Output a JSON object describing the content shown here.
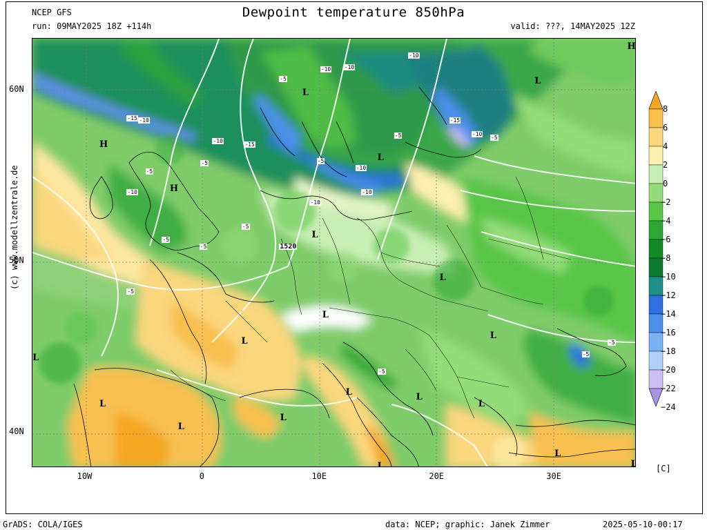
{
  "header": {
    "model": "NCEP GFS",
    "run": "run: 09MAY2025 18Z +114h",
    "title": "Dewpoint temperature 850hPa",
    "valid": "valid: ???, 14MAY2025 12Z"
  },
  "axes": {
    "lon_labels": [
      {
        "text": "10W",
        "lon": -10
      },
      {
        "text": "0",
        "lon": 0
      },
      {
        "text": "10E",
        "lon": 10
      },
      {
        "text": "20E",
        "lon": 20
      },
      {
        "text": "30E",
        "lon": 30
      }
    ],
    "lat_labels": [
      {
        "text": "60N",
        "lat": 60
      },
      {
        "text": "50N",
        "lat": 50
      },
      {
        "text": "40N",
        "lat": 40
      }
    ],
    "lon_range": [
      -14.5,
      37
    ],
    "lat_range": [
      37.9,
      63
    ]
  },
  "colorbar": {
    "unit": "[C]",
    "levels": [
      "8",
      "6",
      "4",
      "2",
      "0",
      "−2",
      "−4",
      "−6",
      "−8",
      "−10",
      "−12",
      "−14",
      "−16",
      "−18",
      "−20",
      "−22",
      "−24"
    ],
    "colors": [
      "#f5a623",
      "#f8c04f",
      "#fbd77e",
      "#fdf0b0",
      "#c7eeb3",
      "#93dc79",
      "#5ac648",
      "#2ea834",
      "#138a2a",
      "#0c7a30",
      "#1f8f8a",
      "#2f6fe0",
      "#4b8fea",
      "#7bb3f2",
      "#aed1f7",
      "#cdbff3",
      "#a994e8"
    ]
  },
  "map_labels": {
    "highs": [
      {
        "text": "H",
        "lon": -8.5,
        "lat": 56.8
      },
      {
        "text": "H",
        "lon": -2.5,
        "lat": 54.2
      },
      {
        "text": "H",
        "lon": 36.5,
        "lat": 62.5
      }
    ],
    "lows": [
      {
        "text": "L",
        "lon": 8.8,
        "lat": 59.8
      },
      {
        "text": "L",
        "lon": 15.2,
        "lat": 56.0
      },
      {
        "text": "L",
        "lon": 28.6,
        "lat": 60.5
      },
      {
        "text": "L",
        "lon": 9.6,
        "lat": 51.5
      },
      {
        "text": "L",
        "lon": 20.5,
        "lat": 49.0
      },
      {
        "text": "L",
        "lon": 10.5,
        "lat": 46.8
      },
      {
        "text": "L",
        "lon": 24.8,
        "lat": 45.6
      },
      {
        "text": "L",
        "lon": 3.6,
        "lat": 45.3
      },
      {
        "text": "L",
        "lon": -14.2,
        "lat": 44.3
      },
      {
        "text": "L",
        "lon": 12.5,
        "lat": 42.3
      },
      {
        "text": "L",
        "lon": 18.5,
        "lat": 42.0
      },
      {
        "text": "L",
        "lon": 23.8,
        "lat": 41.6
      },
      {
        "text": "L",
        "lon": -8.5,
        "lat": 41.6
      },
      {
        "text": "L",
        "lon": 6.9,
        "lat": 40.8
      },
      {
        "text": "L",
        "lon": -1.8,
        "lat": 40.3
      },
      {
        "text": "L",
        "lon": 30.3,
        "lat": 38.7
      },
      {
        "text": "L",
        "lon": 15.2,
        "lat": 38.0
      },
      {
        "text": "L",
        "lon": 36.8,
        "lat": 38.1
      }
    ],
    "contour_values": [
      {
        "text": "-10",
        "lon": 10.5,
        "lat": 61.2
      },
      {
        "text": "-10",
        "lon": 12.5,
        "lat": 61.3
      },
      {
        "text": "-10",
        "lon": 18.0,
        "lat": 62.0
      },
      {
        "text": "-5",
        "lon": 7.0,
        "lat": 60.6
      },
      {
        "text": "-15",
        "lon": -6.0,
        "lat": 58.3
      },
      {
        "text": "-10",
        "lon": -5.0,
        "lat": 58.2
      },
      {
        "text": "-10",
        "lon": 1.3,
        "lat": 57.0
      },
      {
        "text": "-15",
        "lon": 4.0,
        "lat": 56.8
      },
      {
        "text": "-5",
        "lon": 0.3,
        "lat": 55.7
      },
      {
        "text": "-5",
        "lon": -4.4,
        "lat": 55.2
      },
      {
        "text": "-10",
        "lon": -6.0,
        "lat": 54.0
      },
      {
        "text": "-15",
        "lon": 21.5,
        "lat": 58.2
      },
      {
        "text": "-10",
        "lon": 23.4,
        "lat": 57.4
      },
      {
        "text": "-5",
        "lon": 25.0,
        "lat": 57.2
      },
      {
        "text": "-5",
        "lon": 16.8,
        "lat": 57.3
      },
      {
        "text": "-5",
        "lon": 10.2,
        "lat": 55.8
      },
      {
        "text": "-10",
        "lon": 13.5,
        "lat": 55.4
      },
      {
        "text": "-10",
        "lon": 14.0,
        "lat": 54.0
      },
      {
        "text": "-10",
        "lon": 9.6,
        "lat": 53.4
      },
      {
        "text": "-5",
        "lon": 3.8,
        "lat": 52.0
      },
      {
        "text": "-5",
        "lon": -3.0,
        "lat": 51.2
      },
      {
        "text": "-5",
        "lon": 0.2,
        "lat": 50.8
      },
      {
        "text": "-5",
        "lon": -6.0,
        "lat": 48.2
      },
      {
        "text": "1520",
        "lon": 7.0,
        "lat": 50.8
      },
      {
        "text": "-5",
        "lon": 15.4,
        "lat": 43.5
      },
      {
        "text": "-5",
        "lon": 35.0,
        "lat": 45.2
      },
      {
        "text": "-5",
        "lon": 32.8,
        "lat": 44.5
      }
    ]
  },
  "footer": {
    "left": "GrADS: COLA/IGES",
    "center": "data: NCEP; graphic: Janek Zimmer",
    "right": "2025-05-10-00:17"
  },
  "credit": "(c) www.modellzentrale.de"
}
